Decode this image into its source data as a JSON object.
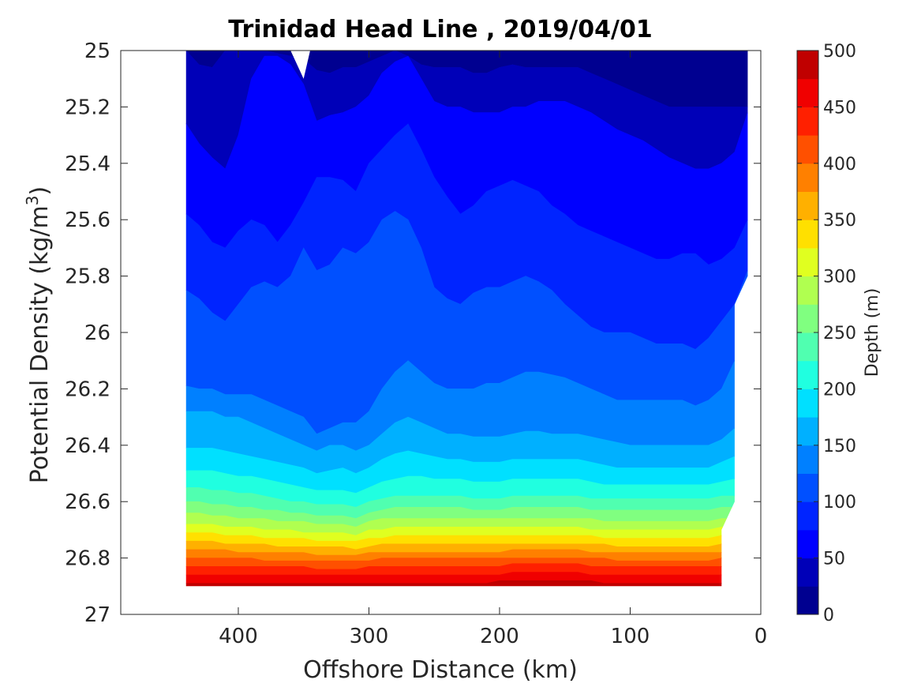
{
  "chart_data": {
    "type": "heatmap",
    "subtype": "filled-contour",
    "title": "Trinidad Head Line , 2019/04/01",
    "xlabel": "Offshore Distance (km)",
    "ylabel_main": "Potential Density (kg/m",
    "ylabel_sup": "3",
    "ylabel_close": ")",
    "colorbar_label": "Depth (m)",
    "xlim": [
      490,
      0
    ],
    "x_reversed": true,
    "ylim": [
      25,
      27
    ],
    "y_reversed": true,
    "x_ticks": [
      400,
      300,
      200,
      100,
      0
    ],
    "x_tick_labels": [
      "400",
      "300",
      "200",
      "100",
      "0"
    ],
    "y_ticks": [
      25,
      25.2,
      25.4,
      25.6,
      25.8,
      26,
      26.2,
      26.4,
      26.6,
      26.8,
      27
    ],
    "y_tick_labels": [
      "25",
      "25.2",
      "25.4",
      "25.6",
      "25.8",
      "26",
      "26.2",
      "26.4",
      "26.6",
      "26.8",
      "27"
    ],
    "colorbar_ticks": [
      0,
      50,
      100,
      150,
      200,
      250,
      300,
      350,
      400,
      450,
      500
    ],
    "colorbar_tick_labels": [
      "0",
      "50",
      "100",
      "150",
      "200",
      "250",
      "300",
      "350",
      "400",
      "450",
      "500"
    ],
    "colorbar_range": [
      0,
      500
    ],
    "contour_interval": 25,
    "colormap": "jet",
    "level_colors": [
      "#000090",
      "#0000b8",
      "#0000ff",
      "#0024ff",
      "#0050ff",
      "#0080ff",
      "#00b0ff",
      "#00e0ff",
      "#20ffe0",
      "#50ffb0",
      "#80ff80",
      "#b0ff50",
      "#e0ff20",
      "#ffe000",
      "#ffb000",
      "#ff8000",
      "#ff5000",
      "#ff2000",
      "#f00000",
      "#c00000"
    ],
    "data_x_range": [
      10,
      440
    ],
    "boundaries": {
      "x": [
        440,
        430,
        420,
        410,
        400,
        390,
        380,
        370,
        360,
        350,
        340,
        330,
        320,
        310,
        300,
        290,
        280,
        270,
        260,
        250,
        240,
        230,
        220,
        210,
        200,
        190,
        180,
        170,
        160,
        150,
        140,
        130,
        120,
        110,
        100,
        90,
        80,
        70,
        60,
        50,
        40,
        30,
        20,
        10
      ],
      "levels": [
        {
          "depth": 25,
          "y": [
            25.0,
            25.05,
            25.06,
            25.0,
            25.0,
            25.0,
            25.0,
            25.01,
            25.02,
            25.03,
            25.07,
            25.08,
            25.06,
            25.06,
            25.04,
            25.02,
            25.0,
            25.02,
            25.05,
            25.06,
            25.06,
            25.06,
            25.08,
            25.08,
            25.06,
            25.05,
            25.06,
            25.06,
            25.06,
            25.06,
            25.06,
            25.08,
            25.1,
            25.12,
            25.14,
            25.16,
            25.18,
            25.2,
            25.2,
            25.2,
            25.2,
            25.2,
            25.2,
            25.2
          ]
        },
        {
          "depth": 50,
          "y": [
            25.26,
            25.33,
            25.38,
            25.42,
            25.3,
            25.1,
            25.02,
            25.02,
            25.05,
            25.12,
            25.25,
            25.23,
            25.22,
            25.2,
            25.16,
            25.08,
            25.04,
            25.02,
            25.1,
            25.18,
            25.2,
            25.2,
            25.22,
            25.22,
            25.22,
            25.2,
            25.2,
            25.18,
            25.18,
            25.18,
            25.2,
            25.22,
            25.25,
            25.28,
            25.3,
            25.32,
            25.35,
            25.38,
            25.4,
            25.42,
            25.42,
            25.4,
            25.36,
            25.22
          ]
        },
        {
          "depth": 75,
          "y": [
            25.58,
            25.62,
            25.68,
            25.7,
            25.64,
            25.6,
            25.62,
            25.68,
            25.62,
            25.54,
            25.45,
            25.45,
            25.46,
            25.5,
            25.4,
            25.35,
            25.3,
            25.26,
            25.35,
            25.45,
            25.52,
            25.58,
            25.55,
            25.5,
            25.48,
            25.46,
            25.48,
            25.5,
            25.55,
            25.58,
            25.62,
            25.64,
            25.66,
            25.68,
            25.7,
            25.72,
            25.74,
            25.74,
            25.72,
            25.72,
            25.76,
            25.74,
            25.7,
            25.6
          ]
        },
        {
          "depth": 100,
          "y": [
            25.85,
            25.88,
            25.93,
            25.96,
            25.9,
            25.84,
            25.82,
            25.84,
            25.8,
            25.7,
            25.78,
            25.76,
            25.7,
            25.72,
            25.68,
            25.6,
            25.57,
            25.6,
            25.7,
            25.84,
            25.88,
            25.9,
            25.86,
            25.84,
            25.84,
            25.82,
            25.8,
            25.82,
            25.85,
            25.9,
            25.94,
            25.98,
            26.0,
            26.0,
            26.0,
            26.02,
            26.04,
            26.04,
            26.04,
            26.06,
            26.02,
            25.96,
            25.9,
            25.78
          ]
        },
        {
          "depth": 125,
          "y": [
            26.19,
            26.2,
            26.2,
            26.22,
            26.22,
            26.22,
            26.24,
            26.26,
            26.28,
            26.3,
            26.36,
            26.34,
            26.32,
            26.32,
            26.28,
            26.2,
            26.14,
            26.1,
            26.14,
            26.18,
            26.2,
            26.2,
            26.2,
            26.18,
            26.18,
            26.16,
            26.14,
            26.14,
            26.15,
            26.16,
            26.18,
            26.2,
            26.22,
            26.24,
            26.24,
            26.24,
            26.24,
            26.24,
            26.24,
            26.26,
            26.24,
            26.2,
            26.1,
            26.05
          ]
        },
        {
          "depth": 150,
          "y": [
            26.28,
            26.28,
            26.28,
            26.3,
            26.3,
            26.32,
            26.34,
            26.36,
            26.38,
            26.4,
            26.42,
            26.4,
            26.4,
            26.42,
            26.4,
            26.36,
            26.32,
            26.3,
            26.32,
            26.34,
            26.36,
            26.36,
            26.37,
            26.37,
            26.37,
            26.36,
            26.35,
            26.35,
            26.36,
            26.36,
            26.36,
            26.37,
            26.38,
            26.39,
            26.4,
            26.4,
            26.4,
            26.4,
            26.4,
            26.4,
            26.4,
            26.38,
            26.34,
            26.34
          ]
        },
        {
          "depth": 175,
          "y": [
            26.41,
            26.41,
            26.41,
            26.42,
            26.43,
            26.44,
            26.45,
            26.46,
            26.47,
            26.48,
            26.5,
            26.49,
            26.48,
            26.5,
            26.48,
            26.45,
            26.43,
            26.42,
            26.43,
            26.44,
            26.45,
            26.45,
            26.46,
            26.46,
            26.46,
            26.45,
            26.45,
            26.45,
            26.45,
            26.45,
            26.45,
            26.46,
            26.47,
            26.48,
            26.48,
            26.48,
            26.48,
            26.48,
            26.48,
            26.48,
            26.48,
            26.46,
            26.44,
            26.44
          ]
        },
        {
          "depth": 200,
          "y": [
            26.49,
            26.49,
            26.49,
            26.5,
            26.51,
            26.51,
            26.52,
            26.53,
            26.54,
            26.55,
            26.56,
            26.56,
            26.56,
            26.57,
            26.55,
            26.53,
            26.52,
            26.51,
            26.51,
            26.52,
            26.52,
            26.52,
            26.53,
            26.53,
            26.53,
            26.52,
            26.52,
            26.52,
            26.52,
            26.52,
            26.52,
            26.53,
            26.54,
            26.54,
            26.54,
            26.54,
            26.54,
            26.54,
            26.54,
            26.54,
            26.54,
            26.53,
            26.52,
            26.52
          ]
        },
        {
          "depth": 225,
          "y": [
            26.55,
            26.55,
            26.56,
            26.56,
            26.57,
            26.57,
            26.58,
            26.59,
            26.6,
            26.6,
            26.61,
            26.61,
            26.61,
            26.62,
            26.6,
            26.59,
            26.58,
            26.58,
            26.58,
            26.58,
            26.58,
            26.58,
            26.59,
            26.59,
            26.59,
            26.58,
            26.58,
            26.58,
            26.58,
            26.58,
            26.58,
            26.59,
            26.59,
            26.59,
            26.59,
            26.59,
            26.59,
            26.59,
            26.59,
            26.59,
            26.59,
            26.58,
            26.58,
            26.58
          ]
        },
        {
          "depth": 250,
          "y": [
            26.6,
            26.6,
            26.61,
            26.61,
            26.62,
            26.62,
            26.63,
            26.63,
            26.64,
            26.64,
            26.65,
            26.65,
            26.65,
            26.66,
            26.64,
            26.63,
            26.62,
            26.62,
            26.62,
            26.62,
            26.62,
            26.62,
            26.63,
            26.63,
            26.63,
            26.62,
            26.62,
            26.62,
            26.62,
            26.62,
            26.62,
            26.63,
            26.63,
            26.63,
            26.63,
            26.63,
            26.63,
            26.63,
            26.63,
            26.63,
            26.63,
            26.62,
            26.62,
            26.62
          ]
        },
        {
          "depth": 275,
          "y": [
            26.64,
            26.64,
            26.65,
            26.65,
            26.66,
            26.66,
            26.66,
            26.67,
            26.67,
            26.67,
            26.68,
            26.68,
            26.68,
            26.69,
            26.67,
            26.66,
            26.66,
            26.66,
            26.66,
            26.66,
            26.66,
            26.66,
            26.66,
            26.66,
            26.66,
            26.66,
            26.66,
            26.66,
            26.66,
            26.66,
            26.66,
            26.66,
            26.67,
            26.67,
            26.67,
            26.67,
            26.67,
            26.67,
            26.67,
            26.67,
            26.67,
            26.66,
            26.66,
            26.66
          ]
        },
        {
          "depth": 300,
          "y": [
            26.68,
            26.68,
            26.68,
            26.69,
            26.69,
            26.69,
            26.7,
            26.7,
            26.7,
            26.71,
            26.71,
            26.71,
            26.71,
            26.72,
            26.7,
            26.7,
            26.69,
            26.69,
            26.69,
            26.69,
            26.69,
            26.69,
            26.69,
            26.69,
            26.69,
            26.69,
            26.69,
            26.69,
            26.69,
            26.69,
            26.69,
            26.7,
            26.7,
            26.7,
            26.7,
            26.7,
            26.7,
            26.7,
            26.7,
            26.7,
            26.7,
            26.69,
            26.69,
            26.69
          ]
        },
        {
          "depth": 325,
          "y": [
            26.71,
            26.71,
            26.71,
            26.72,
            26.72,
            26.72,
            26.73,
            26.73,
            26.73,
            26.73,
            26.74,
            26.74,
            26.74,
            26.74,
            26.73,
            26.73,
            26.72,
            26.72,
            26.72,
            26.72,
            26.72,
            26.72,
            26.72,
            26.72,
            26.72,
            26.72,
            26.72,
            26.72,
            26.72,
            26.72,
            26.72,
            26.72,
            26.73,
            26.73,
            26.73,
            26.73,
            26.73,
            26.73,
            26.73,
            26.73,
            26.73,
            26.72,
            26.72,
            26.72
          ]
        },
        {
          "depth": 350,
          "y": [
            26.74,
            26.74,
            26.74,
            26.75,
            26.75,
            26.75,
            26.75,
            26.76,
            26.76,
            26.76,
            26.76,
            26.76,
            26.76,
            26.77,
            26.76,
            26.75,
            26.75,
            26.75,
            26.75,
            26.75,
            26.75,
            26.75,
            26.75,
            26.75,
            26.75,
            26.75,
            26.75,
            26.75,
            26.75,
            26.75,
            26.75,
            26.75,
            26.75,
            26.76,
            26.76,
            26.76,
            26.76,
            26.76,
            26.76,
            26.76,
            26.76,
            26.75,
            26.75,
            26.75
          ]
        },
        {
          "depth": 375,
          "y": [
            26.77,
            26.77,
            26.77,
            26.77,
            26.78,
            26.78,
            26.78,
            26.78,
            26.78,
            26.78,
            26.79,
            26.79,
            26.79,
            26.79,
            26.78,
            26.78,
            26.78,
            26.78,
            26.78,
            26.78,
            26.78,
            26.78,
            26.78,
            26.78,
            26.78,
            26.77,
            26.77,
            26.77,
            26.77,
            26.77,
            26.77,
            26.78,
            26.78,
            26.78,
            26.78,
            26.78,
            26.78,
            26.78,
            26.78,
            26.78,
            26.78,
            26.78,
            26.78,
            26.78
          ]
        },
        {
          "depth": 400,
          "y": [
            26.8,
            26.8,
            26.8,
            26.8,
            26.8,
            26.8,
            26.81,
            26.81,
            26.81,
            26.81,
            26.81,
            26.81,
            26.81,
            26.81,
            26.81,
            26.8,
            26.8,
            26.8,
            26.8,
            26.8,
            26.8,
            26.8,
            26.8,
            26.8,
            26.8,
            26.8,
            26.8,
            26.8,
            26.8,
            26.8,
            26.8,
            26.8,
            26.8,
            26.81,
            26.81,
            26.81,
            26.81,
            26.81,
            26.81,
            26.81,
            26.81,
            26.8,
            26.8,
            26.8
          ]
        },
        {
          "depth": 425,
          "y": [
            26.83,
            26.83,
            26.83,
            26.83,
            26.83,
            26.83,
            26.83,
            26.83,
            26.83,
            26.83,
            26.84,
            26.84,
            26.84,
            26.84,
            26.83,
            26.83,
            26.83,
            26.83,
            26.83,
            26.83,
            26.83,
            26.83,
            26.83,
            26.83,
            26.83,
            26.82,
            26.82,
            26.82,
            26.82,
            26.82,
            26.82,
            26.83,
            26.83,
            26.83,
            26.83,
            26.83,
            26.83,
            26.83,
            26.83,
            26.83,
            26.83,
            26.83,
            26.83,
            26.83
          ]
        },
        {
          "depth": 450,
          "y": [
            26.86,
            26.86,
            26.86,
            26.86,
            26.86,
            26.86,
            26.86,
            26.86,
            26.86,
            26.86,
            26.86,
            26.86,
            26.86,
            26.86,
            26.86,
            26.86,
            26.86,
            26.86,
            26.86,
            26.86,
            26.86,
            26.86,
            26.86,
            26.86,
            26.86,
            26.85,
            26.85,
            26.85,
            26.85,
            26.85,
            26.85,
            26.86,
            26.86,
            26.86,
            26.86,
            26.86,
            26.86,
            26.86,
            26.86,
            26.86,
            26.86,
            26.86,
            26.86,
            26.86
          ]
        },
        {
          "depth": 475,
          "y": [
            26.89,
            26.89,
            26.89,
            26.89,
            26.89,
            26.89,
            26.89,
            26.89,
            26.89,
            26.89,
            26.89,
            26.89,
            26.89,
            26.89,
            26.89,
            26.89,
            26.89,
            26.89,
            26.89,
            26.89,
            26.89,
            26.89,
            26.89,
            26.89,
            26.88,
            26.88,
            26.88,
            26.88,
            26.88,
            26.88,
            26.88,
            26.88,
            26.89,
            26.89,
            26.89,
            26.89,
            26.89,
            26.89,
            26.89,
            26.89,
            26.89,
            26.89,
            26.89,
            26.89
          ]
        }
      ]
    },
    "data_top": {
      "x": [
        440,
        360,
        350,
        345,
        10
      ],
      "y": [
        25.0,
        25.0,
        25.1,
        25.0,
        25.0
      ]
    },
    "data_right": {
      "x": [
        10,
        10,
        20,
        20,
        30,
        30
      ],
      "y": [
        25.0,
        25.8,
        25.9,
        26.6,
        26.7,
        26.9
      ]
    },
    "data_bottom_y": 26.9
  }
}
